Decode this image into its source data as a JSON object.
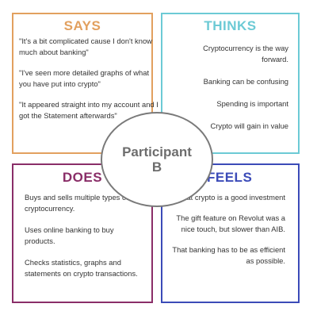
{
  "colors": {
    "says": "#e2a05f",
    "thinks": "#6ccad5",
    "does": "#8a2e68",
    "feels": "#3b4bb8",
    "center_border": "#7a7a7a",
    "text": "#333333"
  },
  "says": {
    "title": "SAYS",
    "items": [
      "\"It's a bit complicated cause I don't know much about banking\"",
      "\"I've seen more detailed graphs of what you have put into crypto\"",
      "\"It appeared straight into my account and I got the Statement afterwards\""
    ]
  },
  "thinks": {
    "title": "THINKS",
    "items": [
      "Cryptocurrency is the way forward.",
      "Banking can be confusing",
      "Spending is important",
      "Crypto will gain in value"
    ]
  },
  "does": {
    "title": "DOES",
    "items": [
      "Buys and sells multiple types of cryptocurrency.",
      "Uses online banking to buy products.",
      "Checks statistics, graphs and statements on crypto transactions."
    ]
  },
  "feels": {
    "title": "FEELS",
    "items": [
      "That crypto is a good investment",
      "The gift feature on Revolut was a nice touch, but slower than AIB.",
      "That banking has to be as efficient as possible."
    ]
  },
  "center": {
    "line1": "Participant",
    "line2": "B"
  }
}
